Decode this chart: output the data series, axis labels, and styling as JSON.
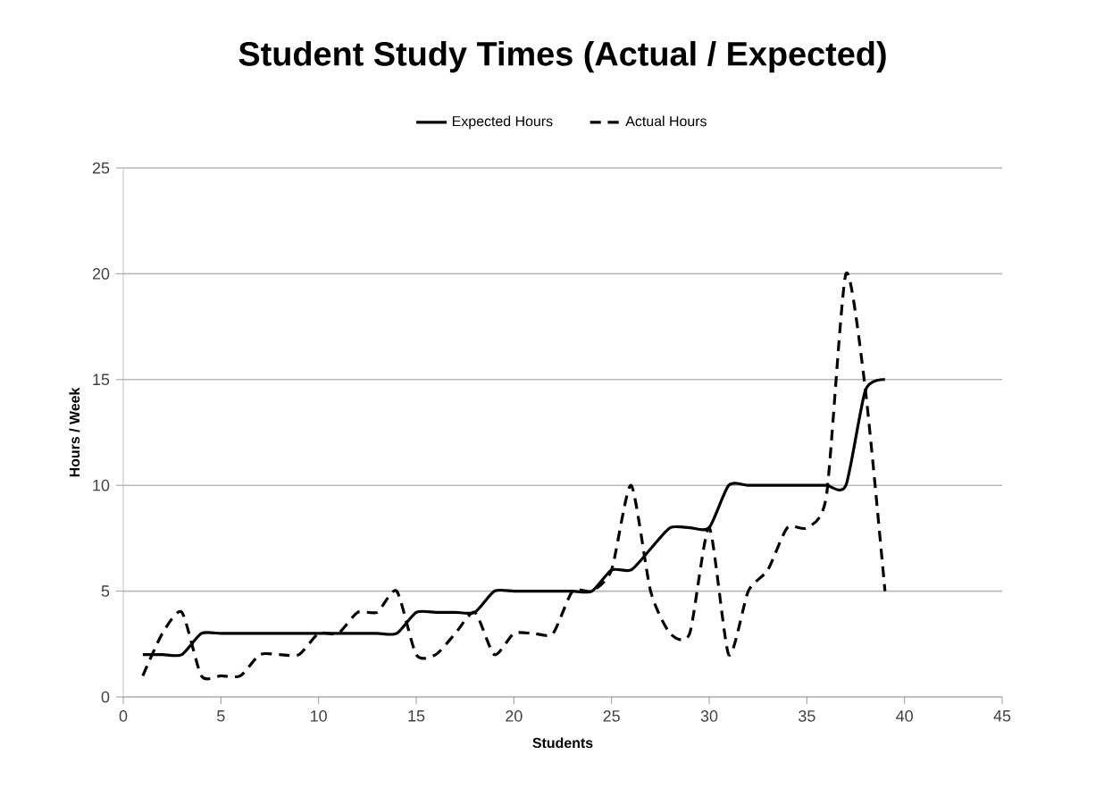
{
  "chart_data": {
    "type": "line",
    "title": "Student Study Times (Actual / Expected)",
    "xlabel": "Students",
    "ylabel": "Hours / Week",
    "x": [
      1,
      2,
      3,
      4,
      5,
      6,
      7,
      8,
      9,
      10,
      11,
      12,
      13,
      14,
      15,
      16,
      17,
      18,
      19,
      20,
      21,
      22,
      23,
      24,
      25,
      26,
      27,
      28,
      29,
      30,
      31,
      32,
      33,
      34,
      35,
      36,
      37,
      38,
      39
    ],
    "series": [
      {
        "name": "Expected Hours",
        "color": "#000000",
        "line_style": "solid",
        "values": [
          2,
          2,
          2,
          3,
          3,
          3,
          3,
          3,
          3,
          3,
          3,
          3,
          3,
          3,
          4,
          4,
          4,
          4,
          5,
          5,
          5,
          5,
          5,
          5,
          6,
          6,
          7,
          8,
          8,
          8,
          10,
          10,
          10,
          10,
          10,
          10,
          10,
          14.5,
          15
        ]
      },
      {
        "name": "Actual Hours",
        "color": "#000000",
        "line_style": "dashed",
        "values": [
          1,
          3,
          4,
          1,
          1,
          1,
          2,
          2,
          2,
          3,
          3,
          4,
          4,
          5,
          2,
          2,
          3,
          4,
          2,
          3,
          3,
          3,
          5,
          5,
          6,
          10,
          5,
          3,
          3,
          8,
          2,
          5,
          6,
          8,
          8,
          9.5,
          20,
          14.5,
          5
        ]
      }
    ],
    "xlim": [
      0,
      45
    ],
    "ylim": [
      0,
      25
    ],
    "xticks": [
      0,
      5,
      10,
      15,
      20,
      25,
      30,
      35,
      40,
      45
    ],
    "yticks": [
      0,
      5,
      10,
      15,
      20,
      25
    ],
    "grid": "y",
    "legend": "top"
  }
}
